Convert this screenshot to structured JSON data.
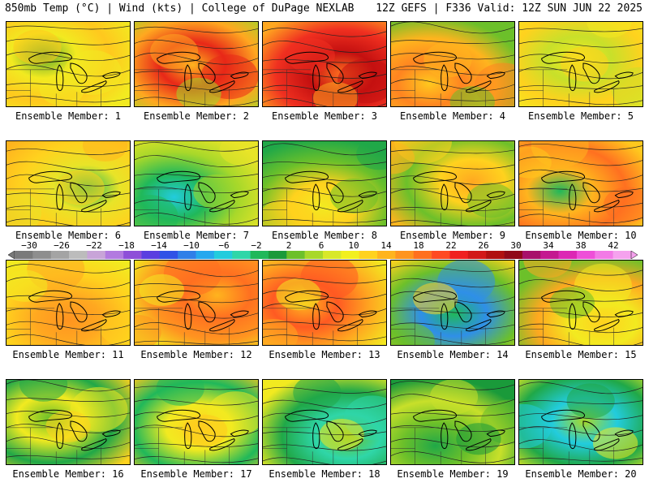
{
  "header": {
    "left": "850mb Temp (°C) | Wind (kts) | College of DuPage NEXLAB",
    "right": "12Z GEFS | F336 Valid: 12Z SUN JUN 22 2025"
  },
  "colorbar": {
    "labels": [
      "−30",
      "−26",
      "−22",
      "−18",
      "−14",
      "−10",
      "−6",
      "−2",
      "2",
      "6",
      "10",
      "14",
      "18",
      "22",
      "26",
      "30",
      "34",
      "38",
      "42"
    ],
    "colors": [
      "#7a7a7a",
      "#8e8e8e",
      "#a4a4a4",
      "#bcbcbc",
      "#c8a4d8",
      "#b27ae0",
      "#8e4fd8",
      "#5a3fe0",
      "#2f52e6",
      "#2f7fe8",
      "#25a8ee",
      "#22ccdd",
      "#2fd6a8",
      "#20b85a",
      "#1a9a3a",
      "#6cc02a",
      "#a8d82a",
      "#d8e82a",
      "#f2f01e",
      "#ffd21e",
      "#ffb41e",
      "#ff9420",
      "#ff7020",
      "#ff4a22",
      "#f02020",
      "#d21818",
      "#b01010",
      "#900818",
      "#a8106a",
      "#c41890",
      "#dc28b4",
      "#ee50d8",
      "#f27ae6",
      "#f5a2ee"
    ]
  },
  "members": [
    {
      "label": "Ensemble Member: 1",
      "colors": [
        "#5aa830",
        "#f2ea20",
        "#ffc81e",
        "#f2ea20"
      ]
    },
    {
      "label": "Ensemble Member: 2",
      "colors": [
        "#ffb41e",
        "#e82818",
        "#ffa820",
        "#9ed82a"
      ]
    },
    {
      "label": "Ensemble Member: 3",
      "colors": [
        "#ff7020",
        "#c41010",
        "#f03020",
        "#ffa820"
      ]
    },
    {
      "label": "Ensemble Member: 4",
      "colors": [
        "#ffc81e",
        "#ff8420",
        "#ffb41e",
        "#6cc02a"
      ]
    },
    {
      "label": "Ensemble Member: 5",
      "colors": [
        "#f2ea20",
        "#c8e02a",
        "#ffd21e",
        "#f2ea20"
      ]
    },
    {
      "label": "Ensemble Member: 6",
      "colors": [
        "#20b85a",
        "#e8e428",
        "#ffd21e",
        "#ffb41e"
      ]
    },
    {
      "label": "Ensemble Member: 7",
      "colors": [
        "#22ccdd",
        "#20b85a",
        "#a8d82a",
        "#e8e428"
      ]
    },
    {
      "label": "Ensemble Member: 8",
      "colors": [
        "#f2ea20",
        "#ffd21e",
        "#6cc02a",
        "#20a848"
      ]
    },
    {
      "label": "Ensemble Member: 9",
      "colors": [
        "#ffa820",
        "#ffd21e",
        "#6cc02a",
        "#ffb41e"
      ]
    },
    {
      "label": "Ensemble Member: 10",
      "colors": [
        "#20b85a",
        "#ffb41e",
        "#ff7020",
        "#ffc81e"
      ]
    },
    {
      "label": "Ensemble Member: 11",
      "colors": [
        "#ff9420",
        "#ffa820",
        "#ffd21e",
        "#f2ea20"
      ]
    },
    {
      "label": "Ensemble Member: 12",
      "colors": [
        "#ffb41e",
        "#ff7020",
        "#ff9420",
        "#f2ea20"
      ]
    },
    {
      "label": "Ensemble Member: 13",
      "colors": [
        "#ffb41e",
        "#ff5a22",
        "#ffa820",
        "#f2ea20"
      ]
    },
    {
      "label": "Ensemble Member: 14",
      "colors": [
        "#20b85a",
        "#2f8fe8",
        "#6cc02a",
        "#ffd21e"
      ]
    },
    {
      "label": "Ensemble Member: 15",
      "colors": [
        "#ffd21e",
        "#f2ea20",
        "#ffa820",
        "#6cc02a"
      ]
    },
    {
      "label": "Ensemble Member: 16",
      "colors": [
        "#6cc02a",
        "#f2ea20",
        "#20a848",
        "#ffd21e"
      ]
    },
    {
      "label": "Ensemble Member: 17",
      "colors": [
        "#ffd21e",
        "#f2ea20",
        "#20b85a",
        "#ffc81e"
      ]
    },
    {
      "label": "Ensemble Member: 18",
      "colors": [
        "#6cc02a",
        "#2fd6a8",
        "#20a848",
        "#f2ea20"
      ]
    },
    {
      "label": "Ensemble Member: 19",
      "colors": [
        "#20a848",
        "#6cc02a",
        "#c8e02a",
        "#1a9a3a"
      ]
    },
    {
      "label": "Ensemble Member: 20",
      "colors": [
        "#a8d82a",
        "#22ccdd",
        "#20a848",
        "#f2ea20"
      ]
    }
  ]
}
